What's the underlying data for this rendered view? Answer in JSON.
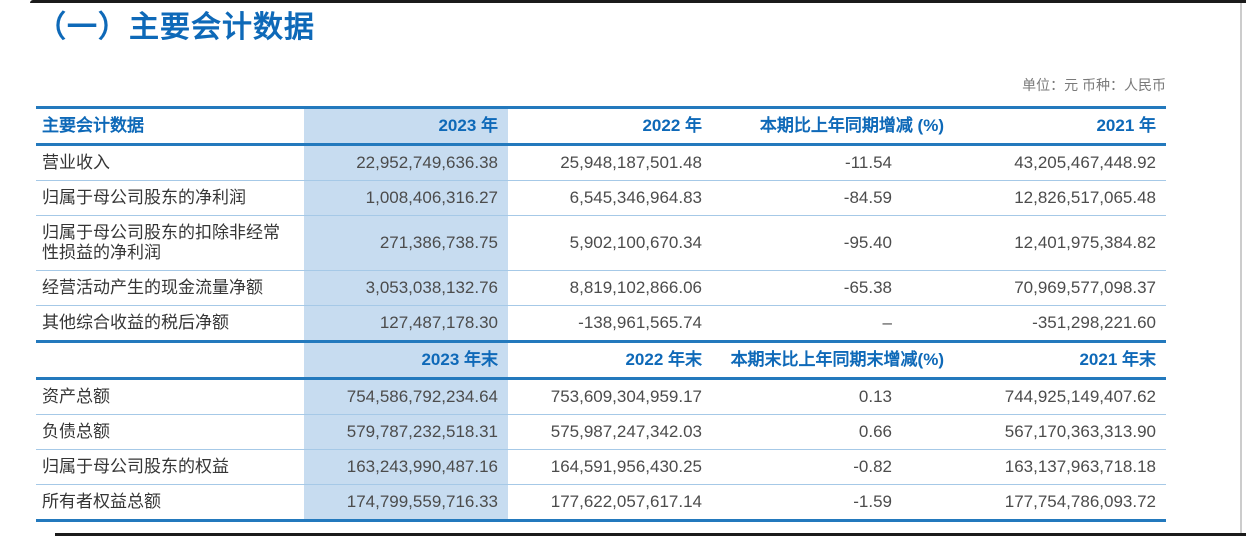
{
  "page": {
    "title": "（一）主要会计数据",
    "unit_note": "单位：元  币种：人民币"
  },
  "colors": {
    "accent_blue": "#0e69b8",
    "rule_blue": "#2379bd",
    "thin_rule_blue": "#a6c9e7",
    "highlight_column_bg": "#c7dcf0",
    "body_text": "#4c4c4c"
  },
  "table": {
    "section1": {
      "headers": [
        "主要会计数据",
        "2023 年",
        "2022 年",
        "本期比上年同期增减 (%)",
        "2021 年"
      ],
      "rows": [
        [
          "营业收入",
          "22,952,749,636.38",
          "25,948,187,501.48",
          "-11.54",
          "43,205,467,448.92"
        ],
        [
          "归属于母公司股东的净利润",
          "1,008,406,316.27",
          "6,545,346,964.83",
          "-84.59",
          "12,826,517,065.48"
        ],
        [
          "归属于母公司股东的扣除非经常性损益的净利润",
          "271,386,738.75",
          "5,902,100,670.34",
          "-95.40",
          "12,401,975,384.82"
        ],
        [
          "经营活动产生的现金流量净额",
          "3,053,038,132.76",
          "8,819,102,866.06",
          "-65.38",
          "70,969,577,098.37"
        ],
        [
          "其他综合收益的税后净额",
          "127,487,178.30",
          "-138,961,565.74",
          "–",
          "-351,298,221.60"
        ]
      ]
    },
    "section2": {
      "headers": [
        "",
        "2023 年末",
        "2022 年末",
        "本期末比上年同期末增减(%)",
        "2021 年末"
      ],
      "rows": [
        [
          "资产总额",
          "754,586,792,234.64",
          "753,609,304,959.17",
          "0.13",
          "744,925,149,407.62"
        ],
        [
          "负债总额",
          "579,787,232,518.31",
          "575,987,247,342.03",
          "0.66",
          "567,170,363,313.90"
        ],
        [
          "归属于母公司股东的权益",
          "163,243,990,487.16",
          "164,591,956,430.25",
          "-0.82",
          "163,137,963,718.18"
        ],
        [
          "所有者权益总额",
          "174,799,559,716.33",
          "177,622,057,617.14",
          "-1.59",
          "177,754,786,093.72"
        ]
      ]
    }
  }
}
